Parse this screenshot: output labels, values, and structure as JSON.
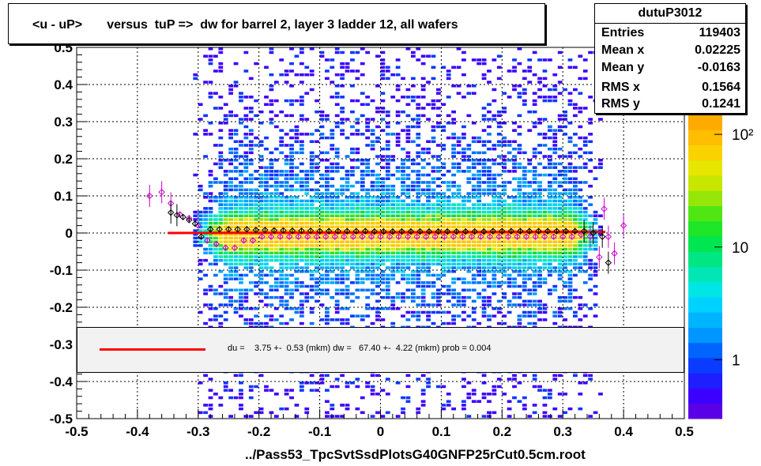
{
  "title": "<u - uP>       versus  tuP =>  dw for barrel 2, layer 3 ladder 12, all wafers",
  "stats": {
    "name": "dutuP3012",
    "rows": [
      {
        "label": "Entries",
        "value": "119403"
      },
      {
        "label": "Mean x",
        "value": "0.02225"
      },
      {
        "label": "Mean y",
        "value": "-0.0163"
      },
      {
        "label": "RMS x",
        "value": "0.1564"
      },
      {
        "label": "RMS y",
        "value": "0.1241"
      }
    ]
  },
  "fit_text": "du =    3.75 +-  0.53 (mkm) dw =   67.40 +-  4.22 (mkm) prob = 0.004",
  "xlabel": "../Pass53_TpcSvtSsdPlotsG40GNFP25rCut0.5cm.root",
  "colors": {
    "fit_line": "#ff0000",
    "profile_black": "#000000",
    "profile_magenta": "#cc00cc"
  },
  "chart_data": {
    "type": "heatmap",
    "xlim": [
      -0.5,
      0.5
    ],
    "ylim": [
      -0.5,
      0.5
    ],
    "x_ticks": [
      "-0.5",
      "-0.4",
      "-0.3",
      "-0.2",
      "-0.1",
      "0",
      "0.1",
      "0.2",
      "0.3",
      "0.4",
      "0.5"
    ],
    "y_ticks": [
      "-0.5",
      "-0.4",
      "-0.3",
      "-0.2",
      "-0.1",
      "0",
      "0.1",
      "0.2",
      "0.3",
      "0.4",
      "0.5"
    ],
    "z_scale": "log",
    "z_ticks": [
      {
        "label": "1",
        "value": 1
      },
      {
        "label": "10",
        "value": 10
      },
      {
        "label": "10²",
        "value": 100
      }
    ],
    "grid": true,
    "fit_line": {
      "x": [
        -0.35,
        0.37
      ],
      "y": [
        0.0,
        0.003
      ]
    },
    "profile_black": {
      "x": [
        -0.345,
        -0.335,
        -0.325,
        -0.315,
        -0.305,
        -0.295,
        -0.28,
        -0.265,
        -0.25,
        -0.235,
        -0.22,
        -0.205,
        -0.19,
        -0.175,
        -0.16,
        -0.145,
        -0.13,
        -0.115,
        -0.1,
        -0.085,
        -0.07,
        -0.055,
        -0.04,
        -0.025,
        -0.01,
        0.005,
        0.02,
        0.035,
        0.05,
        0.065,
        0.08,
        0.095,
        0.11,
        0.125,
        0.14,
        0.155,
        0.17,
        0.185,
        0.2,
        0.215,
        0.23,
        0.245,
        0.26,
        0.275,
        0.29,
        0.305,
        0.32,
        0.335,
        0.35,
        0.365,
        0.375
      ],
      "y": [
        0.055,
        0.048,
        0.043,
        0.035,
        0.025,
        -0.01,
        0.01,
        0.01,
        0.01,
        0.01,
        0.01,
        0.008,
        0.008,
        0.007,
        0.007,
        0.006,
        0.006,
        0.006,
        0.005,
        0.005,
        0.005,
        0.005,
        0.005,
        0.005,
        0.004,
        0.004,
        0.004,
        0.004,
        0.004,
        0.004,
        0.004,
        0.004,
        0.004,
        0.004,
        0.004,
        0.004,
        0.004,
        0.005,
        0.005,
        0.005,
        0.005,
        0.005,
        0.005,
        0.005,
        0.005,
        0.005,
        0.005,
        0.005,
        0.0,
        -0.01,
        -0.08
      ]
    },
    "profile_magenta": {
      "x": [
        -0.38,
        -0.36,
        -0.345,
        -0.33,
        -0.315,
        -0.3,
        -0.285,
        -0.27,
        -0.255,
        -0.24,
        -0.225,
        -0.21,
        -0.195,
        -0.18,
        -0.165,
        -0.15,
        -0.135,
        -0.12,
        -0.105,
        -0.09,
        -0.075,
        -0.06,
        -0.045,
        -0.03,
        -0.015,
        0.0,
        0.015,
        0.03,
        0.045,
        0.06,
        0.075,
        0.09,
        0.105,
        0.12,
        0.135,
        0.15,
        0.165,
        0.18,
        0.195,
        0.21,
        0.225,
        0.24,
        0.255,
        0.27,
        0.285,
        0.3,
        0.315,
        0.33,
        0.345,
        0.36,
        0.368,
        0.375,
        0.385,
        0.4
      ],
      "y": [
        0.1,
        0.11,
        0.08,
        0.05,
        0.04,
        0.02,
        -0.02,
        -0.03,
        -0.04,
        -0.04,
        -0.02,
        -0.02,
        -0.01,
        -0.01,
        -0.01,
        -0.01,
        -0.01,
        -0.01,
        -0.01,
        -0.01,
        -0.01,
        -0.01,
        -0.01,
        -0.01,
        -0.01,
        -0.01,
        -0.01,
        -0.01,
        -0.01,
        -0.01,
        -0.01,
        -0.01,
        -0.01,
        -0.01,
        -0.01,
        -0.01,
        -0.01,
        -0.01,
        -0.01,
        -0.01,
        -0.01,
        -0.01,
        -0.01,
        -0.01,
        -0.01,
        -0.01,
        -0.01,
        -0.005,
        -0.01,
        -0.065,
        0.065,
        -0.01,
        -0.055,
        0.02
      ]
    }
  }
}
